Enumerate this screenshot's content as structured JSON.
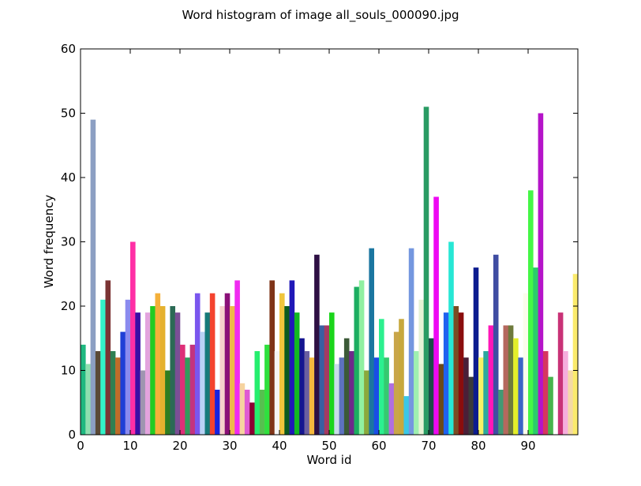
{
  "chart_data": {
    "type": "bar",
    "title": "Word histogram of image all_souls_000090.jpg",
    "xlabel": "Word id",
    "ylabel": "Word frequency",
    "xlim": [
      0,
      100
    ],
    "ylim": [
      0,
      60
    ],
    "xticks": [
      0,
      10,
      20,
      30,
      40,
      50,
      60,
      70,
      80,
      90
    ],
    "yticks": [
      0,
      10,
      20,
      30,
      40,
      50,
      60
    ],
    "grid": false,
    "legend": "none",
    "x": [
      0,
      1,
      2,
      3,
      4,
      5,
      6,
      7,
      8,
      9,
      10,
      11,
      12,
      13,
      14,
      15,
      16,
      17,
      18,
      19,
      20,
      21,
      22,
      23,
      24,
      25,
      26,
      27,
      28,
      29,
      30,
      31,
      32,
      33,
      34,
      35,
      36,
      37,
      38,
      39,
      40,
      41,
      42,
      43,
      44,
      45,
      46,
      47,
      48,
      49,
      50,
      51,
      52,
      53,
      54,
      55,
      56,
      57,
      58,
      59,
      60,
      61,
      62,
      63,
      64,
      65,
      66,
      67,
      68,
      69,
      70,
      71,
      72,
      73,
      74,
      75,
      76,
      77,
      78,
      79,
      80,
      81,
      82,
      83,
      84,
      85,
      86,
      87,
      88,
      89,
      90,
      91,
      92,
      93,
      94,
      95,
      96,
      97,
      98,
      99
    ],
    "values": [
      14,
      11,
      49,
      13,
      21,
      24,
      13,
      12,
      16,
      21,
      30,
      19,
      10,
      19,
      20,
      22,
      20,
      10,
      20,
      19,
      14,
      12,
      14,
      22,
      16,
      19,
      22,
      7,
      20,
      22,
      20,
      24,
      8,
      7,
      5,
      13,
      7,
      14,
      24,
      13,
      22,
      20,
      24,
      19,
      15,
      13,
      12,
      28,
      17,
      17,
      19,
      11,
      12,
      15,
      13,
      23,
      24,
      10,
      29,
      12,
      18,
      12,
      8,
      16,
      18,
      6,
      29,
      13,
      21,
      51,
      15,
      37,
      11,
      19,
      30,
      20,
      19,
      12,
      9,
      26,
      12,
      13,
      17,
      28,
      7,
      17,
      17,
      15,
      12,
      22,
      38,
      26,
      50,
      13,
      9,
      0,
      19,
      13,
      10,
      25
    ],
    "colors": [
      "#1fb880",
      "#8fe0b0",
      "#8c9fc3",
      "#5a4a36",
      "#33f2c8",
      "#7b3434",
      "#2f7f52",
      "#bf6c29",
      "#1f3fd6",
      "#8b8bef",
      "#ff2fa5",
      "#3a0fa6",
      "#9e95b0",
      "#e3a3de",
      "#22cc22",
      "#f4b03a",
      "#e5b12e",
      "#2e7d20",
      "#2b6a55",
      "#7a4f96",
      "#de2f78",
      "#329b5c",
      "#c3337e",
      "#7a56ee",
      "#b9d2f5",
      "#167a7a",
      "#f4432e",
      "#1722e0",
      "#f6d1cc",
      "#8a1078",
      "#eeb84a",
      "#f02af1",
      "#f6d3a0",
      "#df5ad3",
      "#8c0033",
      "#25ee6e",
      "#56c04f",
      "#2fe03e",
      "#7f3418",
      "#f5f5f5",
      "#f0c53c",
      "#0a5a1f",
      "#2018b8",
      "#12b822",
      "#141590",
      "#6b5fa0",
      "#f6b93e",
      "#2e1044",
      "#3a5fa2",
      "#a53a62",
      "#1bd51b",
      "#c9dce8",
      "#5e72c0",
      "#3c5a38",
      "#6e2a8a",
      "#1cae61",
      "#90f0a1",
      "#8aa83d",
      "#1b76a0",
      "#1a4de6",
      "#2cf08f",
      "#36c970",
      "#b06ee0",
      "#c9a64a",
      "#c7a83d",
      "#3ac8e6",
      "#7497df",
      "#9ef0b0",
      "#e6f3d6",
      "#299b63",
      "#1b4d48",
      "#ee09f3",
      "#6b4a18",
      "#1f62f0",
      "#27e7d5",
      "#7b4c24",
      "#8a0d0d",
      "#4a1f38",
      "#3a3a3a",
      "#0c1c8f",
      "#f5f267",
      "#2ba89e",
      "#ff16b8",
      "#404da2",
      "#419a74",
      "#b5685e",
      "#6e7a3c",
      "#e3ee2a",
      "#3c63c6",
      "#fbfcec",
      "#45f646",
      "#2bcc6a",
      "#b514c9",
      "#d63660",
      "#47b34d",
      "#ffffff",
      "#c93277",
      "#f6aedd",
      "#f4d9a6",
      "#fbeb6c"
    ]
  }
}
